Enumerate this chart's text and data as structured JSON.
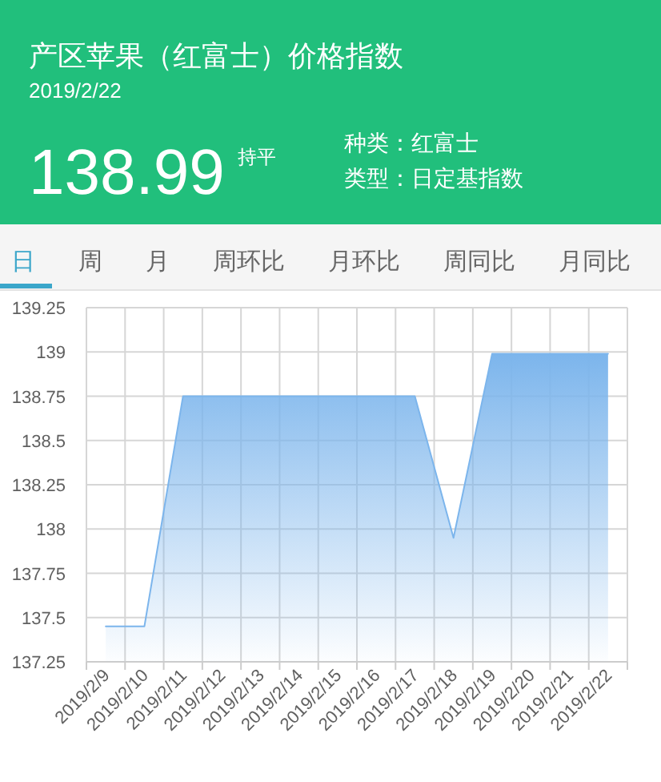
{
  "chart_data": {
    "type": "area",
    "title": "产区苹果（红富士）价格指数",
    "subtitle": "2019/2/22",
    "categories": [
      "2019/2/9",
      "2019/2/10",
      "2019/2/11",
      "2019/2/12",
      "2019/2/13",
      "2019/2/14",
      "2019/2/15",
      "2019/2/16",
      "2019/2/17",
      "2019/2/18",
      "2019/2/19",
      "2019/2/20",
      "2019/2/21",
      "2019/2/22"
    ],
    "series": [
      {
        "color": "#7cb5ec",
        "values": [
          137.45,
          137.45,
          138.75,
          138.75,
          138.75,
          138.75,
          138.75,
          138.75,
          138.75,
          137.95,
          138.99,
          138.99,
          138.99,
          138.99
        ]
      }
    ],
    "ylim": [
      137.25,
      139.25
    ],
    "yticks": [
      137.25,
      137.5,
      137.75,
      138,
      138.25,
      138.5,
      138.75,
      139,
      139.25
    ],
    "grid": true,
    "annotations": [
      "138.99",
      "持平",
      "种类：红富士",
      "类型：日定基指数",
      "日",
      "周",
      "月",
      "周环比",
      "月环比",
      "周同比",
      "月同比"
    ]
  }
}
